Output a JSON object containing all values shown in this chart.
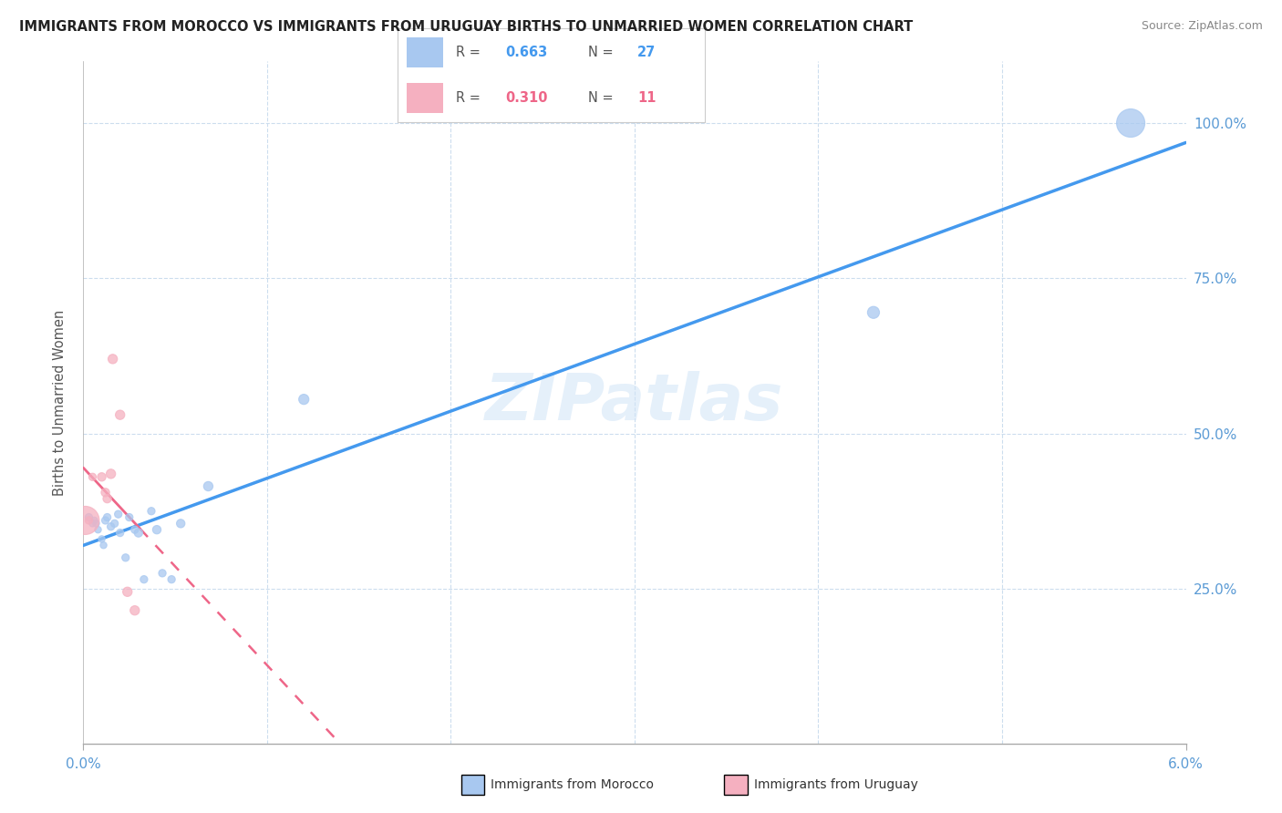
{
  "title": "IMMIGRANTS FROM MOROCCO VS IMMIGRANTS FROM URUGUAY BIRTHS TO UNMARRIED WOMEN CORRELATION CHART",
  "source": "Source: ZipAtlas.com",
  "ylabel": "Births to Unmarried Women",
  "yticks": [
    "25.0%",
    "50.0%",
    "75.0%",
    "100.0%"
  ],
  "ytick_vals": [
    0.25,
    0.5,
    0.75,
    1.0
  ],
  "xmax": 0.06,
  "ymax": 1.1,
  "legend_r1": "R = 0.663",
  "legend_n1": "N = 27",
  "legend_r2": "R = 0.310",
  "legend_n2": "N = 11",
  "morocco_color": "#a8c8f0",
  "uruguay_color": "#f5b0c0",
  "trendline_morocco_color": "#4499ee",
  "trendline_uruguay_color": "#ee6688",
  "watermark_text": "ZIPatlas",
  "morocco_points": [
    [
      0.0003,
      0.365
    ],
    [
      0.0005,
      0.355
    ],
    [
      0.0006,
      0.36
    ],
    [
      0.0007,
      0.355
    ],
    [
      0.0008,
      0.345
    ],
    [
      0.001,
      0.33
    ],
    [
      0.0011,
      0.32
    ],
    [
      0.0012,
      0.36
    ],
    [
      0.0013,
      0.365
    ],
    [
      0.0015,
      0.35
    ],
    [
      0.0017,
      0.355
    ],
    [
      0.0019,
      0.37
    ],
    [
      0.002,
      0.34
    ],
    [
      0.0023,
      0.3
    ],
    [
      0.0025,
      0.365
    ],
    [
      0.0028,
      0.345
    ],
    [
      0.003,
      0.34
    ],
    [
      0.0033,
      0.265
    ],
    [
      0.0037,
      0.375
    ],
    [
      0.004,
      0.345
    ],
    [
      0.0043,
      0.275
    ],
    [
      0.0048,
      0.265
    ],
    [
      0.0053,
      0.355
    ],
    [
      0.0068,
      0.415
    ],
    [
      0.012,
      0.555
    ],
    [
      0.043,
      0.695
    ],
    [
      0.057,
      1.0
    ]
  ],
  "morocco_sizes": [
    35,
    28,
    28,
    28,
    28,
    28,
    28,
    35,
    35,
    35,
    35,
    35,
    35,
    35,
    35,
    35,
    45,
    35,
    35,
    45,
    35,
    35,
    45,
    55,
    65,
    90,
    500
  ],
  "uruguay_points": [
    [
      0.0001,
      0.36
    ],
    [
      0.0003,
      0.36
    ],
    [
      0.0005,
      0.43
    ],
    [
      0.001,
      0.43
    ],
    [
      0.0012,
      0.405
    ],
    [
      0.0013,
      0.395
    ],
    [
      0.0015,
      0.435
    ],
    [
      0.0016,
      0.62
    ],
    [
      0.002,
      0.53
    ],
    [
      0.0024,
      0.245
    ],
    [
      0.0028,
      0.215
    ]
  ],
  "uruguay_sizes": [
    500,
    35,
    35,
    45,
    45,
    45,
    55,
    55,
    55,
    55,
    55
  ]
}
